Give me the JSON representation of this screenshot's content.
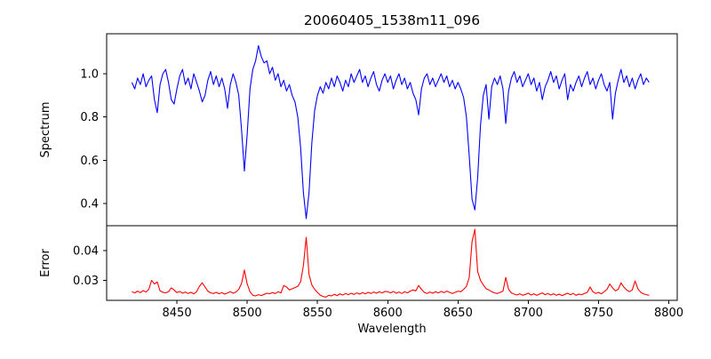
{
  "figure": {
    "background": "#ffffff",
    "frame_color": "#000000",
    "text_color": "#000000"
  },
  "chart_data": [
    {
      "id": "spectrum-panel",
      "type": "line",
      "title": "20060405_1538m11_096",
      "ylabel": "Spectrum",
      "line_color": "#0000ff",
      "xlim": [
        8400,
        8806
      ],
      "ylim": [
        0.297,
        1.185
      ],
      "ytick_values": [
        0.4,
        0.6,
        0.8,
        1.0
      ],
      "ytick_labels": [
        "0.4",
        "0.6",
        "0.8",
        "1.0"
      ],
      "grid": false,
      "legend": null,
      "x0": 8418,
      "dx": 2,
      "y": [
        0.96,
        0.93,
        0.98,
        0.95,
        1.0,
        0.94,
        0.97,
        0.99,
        0.88,
        0.82,
        0.95,
        1.0,
        1.02,
        0.96,
        0.88,
        0.86,
        0.93,
        0.99,
        1.02,
        0.95,
        0.98,
        0.93,
        1.0,
        0.96,
        0.92,
        0.87,
        0.9,
        0.97,
        1.01,
        0.95,
        0.99,
        0.94,
        0.98,
        0.93,
        0.84,
        0.95,
        1.0,
        0.96,
        0.9,
        0.74,
        0.55,
        0.72,
        0.93,
        1.02,
        1.06,
        1.13,
        1.08,
        1.05,
        1.06,
        1.0,
        1.03,
        0.97,
        1.0,
        0.94,
        0.97,
        0.92,
        0.95,
        0.9,
        0.87,
        0.8,
        0.66,
        0.45,
        0.33,
        0.45,
        0.68,
        0.83,
        0.9,
        0.94,
        0.91,
        0.96,
        0.93,
        0.98,
        0.94,
        0.99,
        0.96,
        0.92,
        0.97,
        0.94,
        1.0,
        0.96,
        0.99,
        1.02,
        0.96,
        0.99,
        0.94,
        0.98,
        1.01,
        0.95,
        0.92,
        0.97,
        1.0,
        0.96,
        0.99,
        0.93,
        0.97,
        1.0,
        0.95,
        0.98,
        0.93,
        0.96,
        0.91,
        0.88,
        0.81,
        0.93,
        0.98,
        1.0,
        0.95,
        0.98,
        0.94,
        0.97,
        1.0,
        0.96,
        0.99,
        0.94,
        0.97,
        0.93,
        0.96,
        0.93,
        0.89,
        0.8,
        0.62,
        0.42,
        0.37,
        0.52,
        0.76,
        0.9,
        0.95,
        0.79,
        0.94,
        0.98,
        0.95,
        0.99,
        0.93,
        0.77,
        0.92,
        0.98,
        1.01,
        0.96,
        0.99,
        0.94,
        0.97,
        1.0,
        0.95,
        0.98,
        0.92,
        0.96,
        0.88,
        0.94,
        0.97,
        1.01,
        0.96,
        0.99,
        0.93,
        0.97,
        1.0,
        0.88,
        0.95,
        0.92,
        0.96,
        0.99,
        0.94,
        0.98,
        1.01,
        0.95,
        0.98,
        0.93,
        0.97,
        1.0,
        0.95,
        0.92,
        0.96,
        0.79,
        0.91,
        0.97,
        1.02,
        0.96,
        0.99,
        0.94,
        0.98,
        0.93,
        0.97,
        1.0,
        0.95,
        0.98,
        0.96
      ]
    },
    {
      "id": "error-panel",
      "type": "line",
      "ylabel": "Error",
      "xlabel": "Wavelength",
      "line_color": "#ff0000",
      "xlim": [
        8400,
        8806
      ],
      "ylim": [
        0.0233,
        0.0484
      ],
      "xtick_values": [
        8450,
        8500,
        8550,
        8600,
        8650,
        8700,
        8750,
        8800
      ],
      "xtick_labels": [
        "8450",
        "8500",
        "8550",
        "8600",
        "8650",
        "8700",
        "8750",
        "8800"
      ],
      "ytick_values": [
        0.03,
        0.04
      ],
      "ytick_labels": [
        "0.03",
        "0.04"
      ],
      "grid": false,
      "legend": null,
      "x0": 8418,
      "dx": 2,
      "y": [
        0.0262,
        0.0258,
        0.0264,
        0.0259,
        0.0266,
        0.0261,
        0.027,
        0.03,
        0.0288,
        0.0295,
        0.0265,
        0.026,
        0.0258,
        0.0262,
        0.0275,
        0.0268,
        0.0259,
        0.0263,
        0.0257,
        0.0261,
        0.0256,
        0.026,
        0.0255,
        0.0262,
        0.028,
        0.0292,
        0.0278,
        0.0264,
        0.0258,
        0.0256,
        0.026,
        0.0255,
        0.0259,
        0.0254,
        0.0258,
        0.0262,
        0.0257,
        0.0261,
        0.027,
        0.029,
        0.0335,
        0.0288,
        0.0262,
        0.025,
        0.0248,
        0.0252,
        0.0249,
        0.0253,
        0.0257,
        0.0255,
        0.0259,
        0.0256,
        0.0262,
        0.0258,
        0.0283,
        0.0278,
        0.0268,
        0.0272,
        0.0276,
        0.028,
        0.0295,
        0.035,
        0.0445,
        0.032,
        0.0285,
        0.027,
        0.026,
        0.025,
        0.0246,
        0.0244,
        0.025,
        0.0248,
        0.0253,
        0.0249,
        0.0255,
        0.0251,
        0.0256,
        0.0252,
        0.0257,
        0.0253,
        0.0258,
        0.0254,
        0.0259,
        0.0255,
        0.026,
        0.0256,
        0.0261,
        0.0257,
        0.0262,
        0.0258,
        0.0263,
        0.0262,
        0.0258,
        0.0263,
        0.0257,
        0.0261,
        0.0256,
        0.0262,
        0.0258,
        0.0264,
        0.0268,
        0.0265,
        0.0283,
        0.027,
        0.026,
        0.0256,
        0.0261,
        0.0257,
        0.0262,
        0.0258,
        0.0263,
        0.0259,
        0.0264,
        0.026,
        0.0256,
        0.026,
        0.0264,
        0.0262,
        0.027,
        0.028,
        0.031,
        0.043,
        0.0472,
        0.033,
        0.03,
        0.0285,
        0.0272,
        0.0268,
        0.0262,
        0.0258,
        0.0256,
        0.026,
        0.0264,
        0.031,
        0.027,
        0.0258,
        0.0254,
        0.0251,
        0.0255,
        0.025,
        0.0253,
        0.0257,
        0.0251,
        0.0255,
        0.025,
        0.0254,
        0.0258,
        0.0252,
        0.0256,
        0.0251,
        0.0255,
        0.025,
        0.0254,
        0.0249,
        0.0253,
        0.0257,
        0.0252,
        0.0256,
        0.025,
        0.0254,
        0.0252,
        0.0256,
        0.026,
        0.0278,
        0.0262,
        0.0256,
        0.026,
        0.0255,
        0.0262,
        0.027,
        0.0288,
        0.0275,
        0.0265,
        0.027,
        0.0292,
        0.0278,
        0.0268,
        0.0262,
        0.0268,
        0.0298,
        0.0272,
        0.026,
        0.0255,
        0.0252,
        0.025
      ]
    }
  ]
}
